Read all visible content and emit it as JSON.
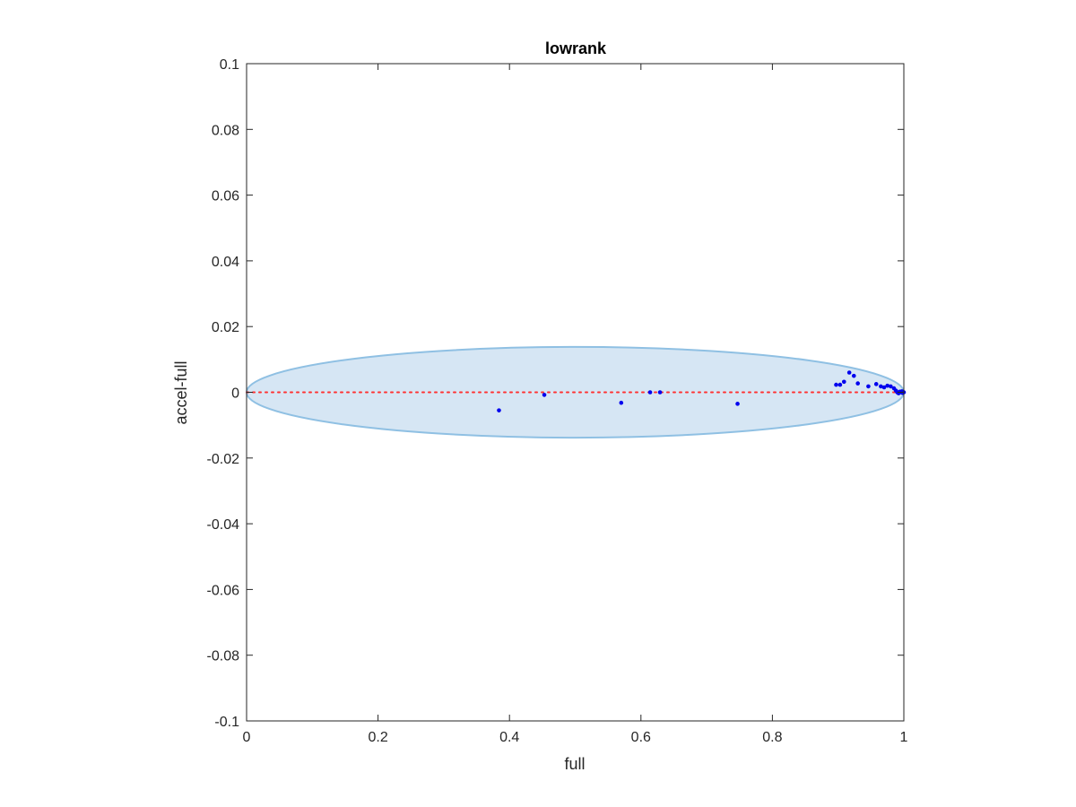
{
  "chart_data": {
    "type": "scatter",
    "title": "lowrank",
    "xlabel": "full",
    "ylabel": "accel-full",
    "xlim": [
      0,
      1
    ],
    "ylim": [
      -0.1,
      0.1
    ],
    "xticks": [
      0,
      0.2,
      0.4,
      0.6,
      0.8,
      1
    ],
    "xtick_labels": [
      "0",
      "0.2",
      "0.4",
      "0.6",
      "0.8",
      "1"
    ],
    "yticks": [
      -0.1,
      -0.08,
      -0.06,
      -0.04,
      -0.02,
      0,
      0.02,
      0.04,
      0.06,
      0.08,
      0.1
    ],
    "ytick_labels": [
      "-0.1",
      "-0.08",
      "-0.06",
      "-0.04",
      "-0.02",
      "0",
      "0.02",
      "0.04",
      "0.06",
      "0.08",
      "0.1"
    ],
    "grid": false,
    "legend": "none",
    "reference_line": {
      "y": 0,
      "style": "dotted",
      "color": "#ff3333"
    },
    "ellipse": {
      "cx": 0.5,
      "cy": 0,
      "rx": 0.5,
      "ry": 0.0138,
      "fill": "#d6e6f4",
      "stroke": "#8fc0e3"
    },
    "point_color": "#0000ee",
    "points": [
      [
        0.384,
        -0.0055
      ],
      [
        0.453,
        -0.0008
      ],
      [
        0.57,
        -0.0032
      ],
      [
        0.614,
        0.0
      ],
      [
        0.629,
        0.0
      ],
      [
        0.747,
        -0.0035
      ],
      [
        0.897,
        0.0023
      ],
      [
        0.903,
        0.0023
      ],
      [
        0.909,
        0.0032
      ],
      [
        0.917,
        0.006
      ],
      [
        0.924,
        0.005
      ],
      [
        0.93,
        0.0027
      ],
      [
        0.946,
        0.0018
      ],
      [
        0.958,
        0.0025
      ],
      [
        0.965,
        0.0018
      ],
      [
        0.97,
        0.0015
      ],
      [
        0.975,
        0.002
      ],
      [
        0.98,
        0.0018
      ],
      [
        0.985,
        0.0012
      ],
      [
        0.988,
        0.0005
      ],
      [
        0.99,
        0.0
      ],
      [
        0.992,
        -0.0003
      ],
      [
        0.994,
        0.0002
      ],
      [
        0.996,
        0.0
      ],
      [
        0.997,
        0.0003
      ],
      [
        0.998,
        -0.0002
      ],
      [
        0.999,
        0.0001
      ],
      [
        1.0,
        0.0
      ]
    ]
  }
}
